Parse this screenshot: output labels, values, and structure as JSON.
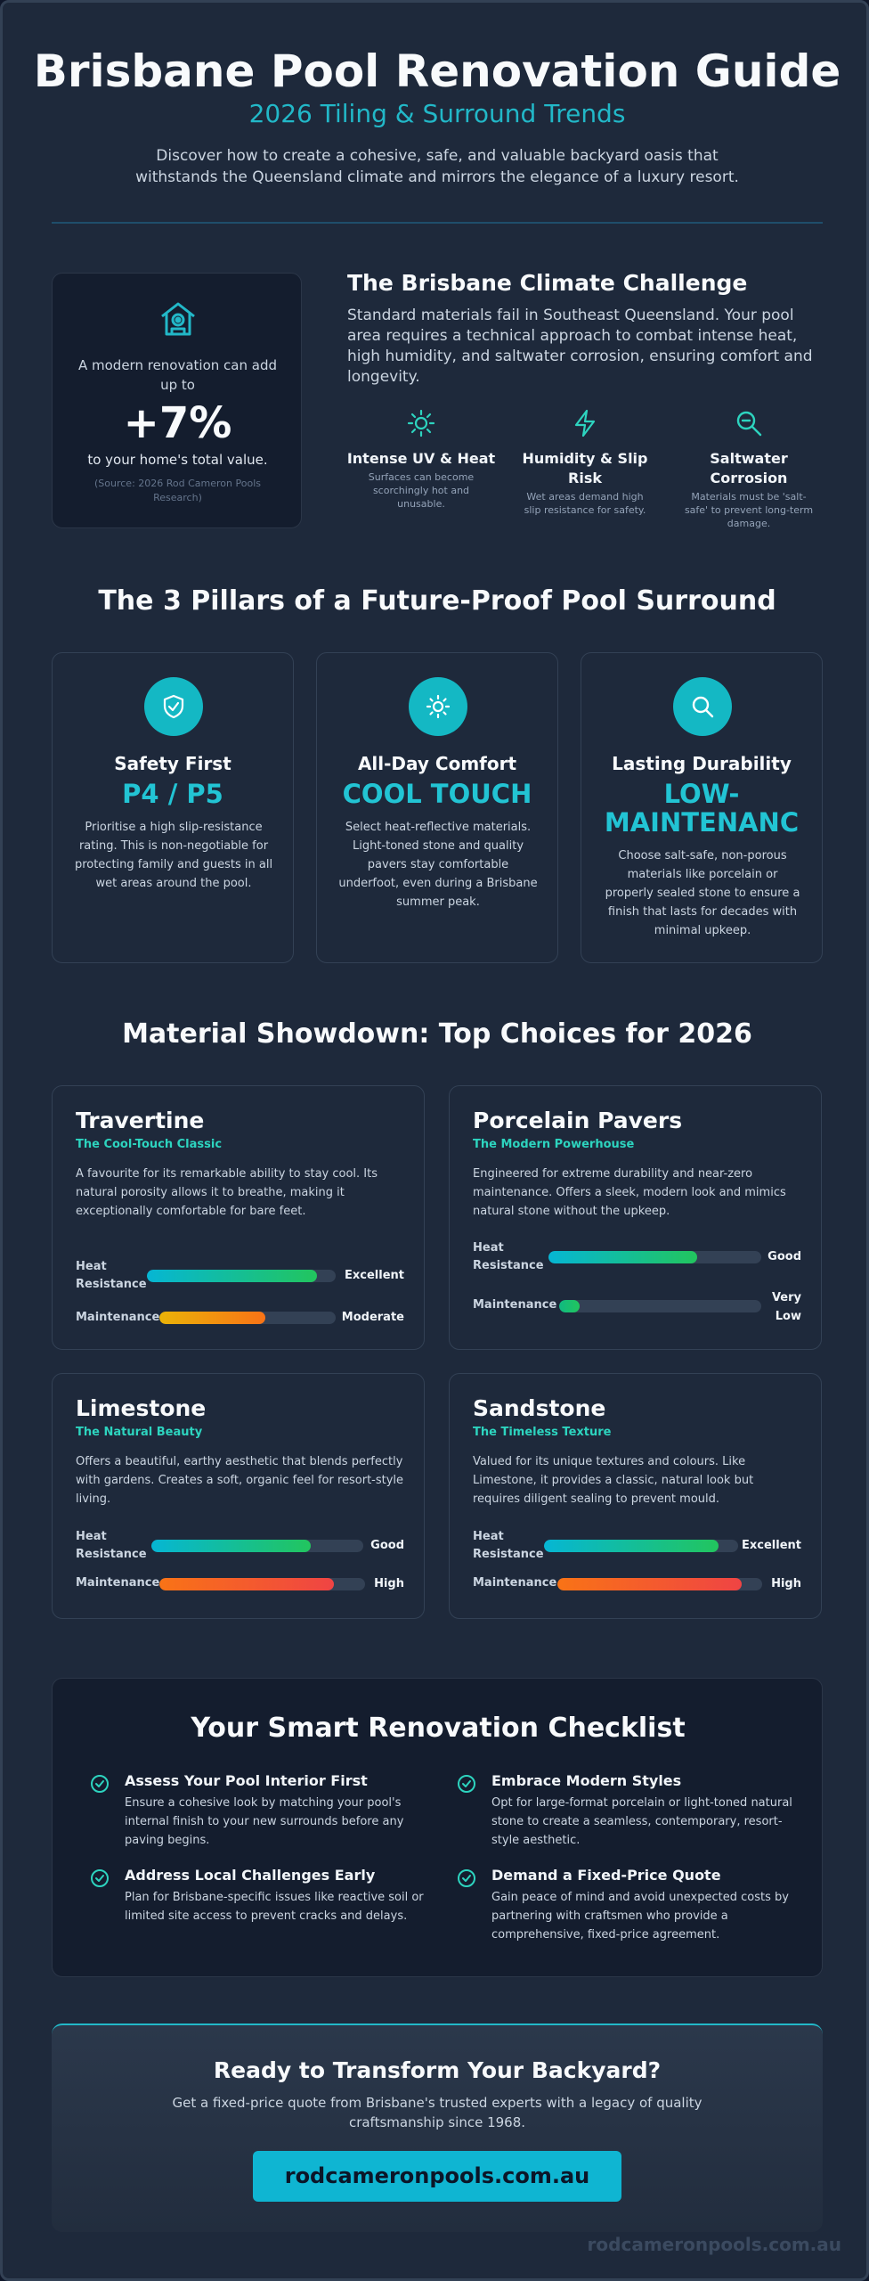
{
  "header": {
    "title": "Brisbane Pool Renovation Guide",
    "subtitle": "2026 Tiling & Surround Trends",
    "description": "Discover how to create a cohesive, safe, and valuable backyard oasis that withstands the Queensland climate and mirrors the elegance of a luxury resort."
  },
  "stat": {
    "pre_text": "A modern renovation can add up to",
    "value": "+7%",
    "post_text": "to your home's total value.",
    "source": "(Source: 2026 Rod Cameron Pools Research)",
    "icon": "house-icon"
  },
  "climate": {
    "title": "The Brisbane Climate Challenge",
    "description": "Standard materials fail in Southeast Queensland. Your pool area requires a technical approach to combat intense heat, high humidity, and saltwater corrosion, ensuring comfort and longevity.",
    "items": [
      {
        "title": "Intense UV & Heat",
        "desc": "Surfaces can become scorchingly hot and unusable.",
        "icon": "sun-icon"
      },
      {
        "title": "Humidity & Slip Risk",
        "desc": "Wet areas demand high slip resistance for safety.",
        "icon": "lightning-icon"
      },
      {
        "title": "Saltwater Corrosion",
        "desc": "Materials must be 'salt-safe' to prevent long-term damage.",
        "icon": "magnifier-icon"
      }
    ]
  },
  "pillars": {
    "title": "The 3 Pillars of a Future-Proof Pool Surround",
    "items": [
      {
        "title": "Safety First",
        "badge": "P4 / P5",
        "desc": "Prioritise a high slip-resistance rating. This is non-negotiable for protecting family and guests in all wet areas around the pool.",
        "icon": "shield-check-icon"
      },
      {
        "title": "All-Day Comfort",
        "badge": "COOL TOUCH",
        "desc": "Select heat-reflective materials. Light-toned stone and quality pavers stay comfortable underfoot, even during a Brisbane summer peak.",
        "icon": "sun-icon"
      },
      {
        "title": "Lasting Durability",
        "badge": "LOW-MAINTENANC",
        "desc": "Choose salt-safe, non-porous materials like porcelain or properly sealed stone to ensure a finish that lasts for decades with minimal upkeep.",
        "icon": "search-icon"
      }
    ]
  },
  "materials": {
    "title": "Material Showdown: Top Choices for 2026",
    "items": [
      {
        "name": "Travertine",
        "sub": "The Cool-Touch Classic",
        "desc": "A favourite for its remarkable ability to stay cool. Its natural porosity allows it to breathe, making it exceptionally comfortable for bare feet.",
        "bars": [
          {
            "label": "Heat Resistance",
            "value": "Excellent",
            "level": 0.9,
            "color": "#22c55e"
          },
          {
            "label": "Maintenance",
            "value": "Moderate",
            "level": 0.6,
            "color": "#f97316"
          }
        ]
      },
      {
        "name": "Porcelain Pavers",
        "sub": "The Modern Powerhouse",
        "desc": "Engineered for extreme durability and near-zero maintenance. Offers a sleek, modern look and mimics natural stone without the upkeep.",
        "bars": [
          {
            "label": "Heat Resistance",
            "value": "Good",
            "level": 0.7,
            "color": "#22c55e"
          },
          {
            "label": "Maintenance",
            "value": "Very Low",
            "level": 0.1,
            "color": "#22c55e"
          }
        ]
      },
      {
        "name": "Limestone",
        "sub": "The Natural Beauty",
        "desc": "Offers a beautiful, earthy aesthetic that blends perfectly with gardens. Creates a soft, organic feel for resort-style living.",
        "bars": [
          {
            "label": "Heat Resistance",
            "value": "Good",
            "level": 0.75,
            "color": "#22c55e"
          },
          {
            "label": "Maintenance",
            "value": "High",
            "level": 0.85,
            "color": "#ef4444"
          }
        ]
      },
      {
        "name": "Sandstone",
        "sub": "The Timeless Texture",
        "desc": "Valued for its unique textures and colours. Like Limestone, it provides a classic, natural look but requires diligent sealing to prevent mould.",
        "bars": [
          {
            "label": "Heat Resistance",
            "value": "Excellent",
            "level": 0.9,
            "color": "#22c55e"
          },
          {
            "label": "Maintenance",
            "value": "High",
            "level": 0.9,
            "color": "#ef4444"
          }
        ]
      }
    ]
  },
  "checklist": {
    "title": "Your Smart Renovation Checklist",
    "items": [
      {
        "title": "Assess Your Pool Interior First",
        "desc": "Ensure a cohesive look by matching your pool's internal finish to your new surrounds before any paving begins."
      },
      {
        "title": "Embrace Modern Styles",
        "desc": "Opt for large-format porcelain or light-toned natural stone to create a seamless, contemporary, resort-style aesthetic."
      },
      {
        "title": "Address Local Challenges Early",
        "desc": "Plan for Brisbane-specific issues like reactive soil or limited site access to prevent cracks and delays."
      },
      {
        "title": "Demand a Fixed-Price Quote",
        "desc": "Gain peace of mind and avoid unexpected costs by partnering with craftsmen who provide a comprehensive, fixed-price agreement."
      }
    ]
  },
  "cta": {
    "title": "Ready to Transform Your Backyard?",
    "description": "Get a fixed-price quote from Brisbane's trusted experts with a legacy of quality craftsmanship since 1968.",
    "button": "rodcameronpools.com.au"
  },
  "footer": {
    "watermark": "rodcameronpools.com.au"
  },
  "colors": {
    "accent": "#22b8c8",
    "teal": "#2dd4bf",
    "background": "#1e293b",
    "card_dark": "#141d2e",
    "button": "#0fb5d2"
  }
}
